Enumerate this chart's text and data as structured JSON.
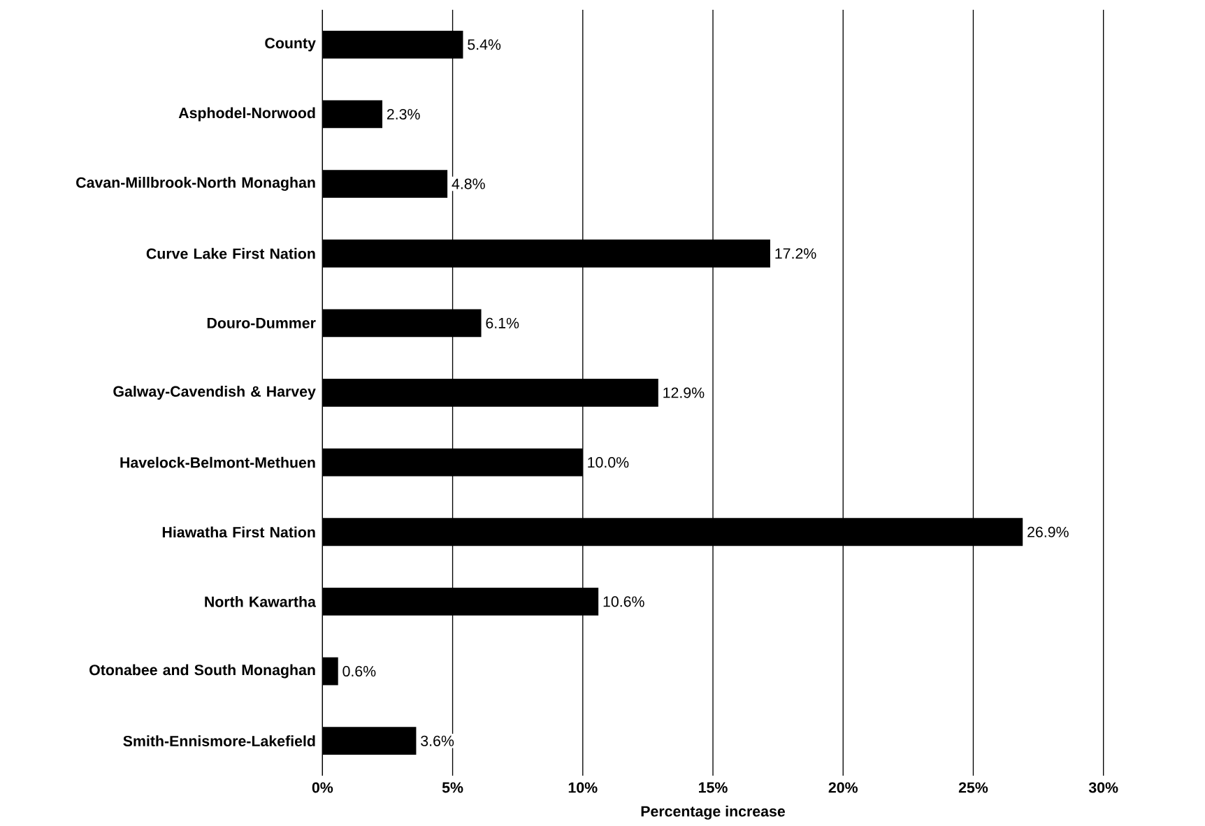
{
  "chart_data": {
    "type": "bar",
    "orientation": "horizontal",
    "xlabel": "Percentage increase",
    "categories": [
      "County",
      "Asphodel-Norwood",
      "Cavan-Millbrook-North Monaghan",
      "Curve Lake First Nation",
      "Douro-Dummer",
      "Galway-Cavendish & Harvey",
      "Havelock-Belmont-Methuen",
      "Hiawatha First Nation",
      "North Kawartha",
      "Otonabee and South Monaghan",
      "Smith-Ennismore-Lakefield"
    ],
    "values": [
      5.4,
      2.3,
      4.8,
      17.2,
      6.1,
      12.9,
      10.0,
      26.9,
      10.6,
      0.6,
      3.6
    ],
    "value_labels": [
      "5.4%",
      "2.3%",
      "4.8%",
      "17.2%",
      "6.1%",
      "12.9%",
      "10.0%",
      "26.9%",
      "10.6%",
      "0.6%",
      "3.6%"
    ],
    "color": "#000000",
    "xlim": [
      0,
      30
    ],
    "xticks": [
      {
        "value": 0,
        "label": "0%"
      },
      {
        "value": 5,
        "label": "5%"
      },
      {
        "value": 10,
        "label": "10%"
      },
      {
        "value": 15,
        "label": "15%"
      },
      {
        "value": 20,
        "label": "20%"
      },
      {
        "value": 25,
        "label": "25%"
      },
      {
        "value": 30,
        "label": "30%"
      }
    ],
    "grid": "x"
  }
}
